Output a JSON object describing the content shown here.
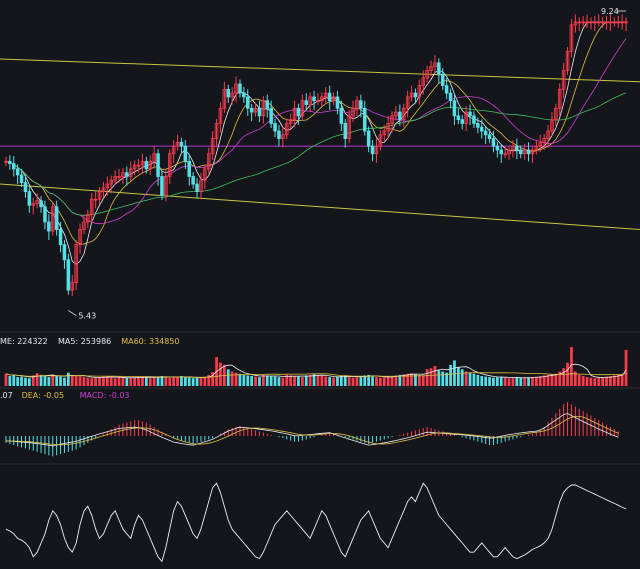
{
  "chart_data": [
    {
      "type": "candlestick",
      "panel": "price",
      "x": [
        1,
        2,
        3,
        4,
        5,
        6,
        7,
        8,
        9,
        10,
        11,
        12,
        13,
        14,
        15,
        16,
        17,
        18,
        19,
        20,
        21,
        22,
        23,
        24,
        25,
        26,
        27,
        28,
        29,
        30,
        31,
        32,
        33,
        34,
        35,
        36,
        37,
        38,
        39,
        40,
        41,
        42,
        43,
        44,
        45,
        46,
        47,
        48,
        49,
        50,
        51,
        52,
        53,
        54,
        55,
        56,
        57,
        58,
        59,
        60,
        61,
        62,
        63,
        64,
        65,
        66,
        67,
        68,
        69,
        70,
        71,
        72,
        73,
        74,
        75,
        76,
        77,
        78,
        79,
        80,
        81,
        82,
        83,
        84,
        85,
        86,
        87,
        88,
        89,
        90,
        91,
        92,
        93,
        94,
        95,
        96,
        97,
        98,
        99,
        100,
        101,
        102,
        103,
        104,
        105,
        106,
        107,
        108,
        109,
        110,
        111,
        112,
        113,
        114,
        115,
        116,
        117,
        118,
        119,
        120,
        121,
        122,
        123,
        124,
        125,
        126,
        127,
        128,
        129,
        130,
        131,
        132,
        133,
        134,
        135,
        136,
        137,
        138,
        139,
        140,
        141,
        142,
        143,
        144,
        145,
        146,
        147,
        148,
        149,
        150,
        151,
        152,
        153,
        154,
        155,
        156,
        157,
        158,
        159,
        160
      ],
      "close": [
        7.4,
        7.37,
        7.3,
        7.22,
        7.12,
        7.0,
        6.82,
        6.84,
        6.88,
        6.8,
        6.6,
        6.48,
        6.8,
        6.5,
        6.3,
        6.1,
        5.7,
        5.8,
        6.3,
        6.5,
        6.6,
        6.7,
        6.9,
        6.9,
        7.0,
        7.05,
        7.1,
        7.15,
        7.2,
        7.2,
        7.25,
        7.2,
        7.3,
        7.35,
        7.35,
        7.4,
        7.3,
        7.4,
        7.5,
        7.2,
        6.95,
        7.2,
        7.5,
        7.6,
        7.65,
        7.6,
        7.4,
        7.2,
        7.1,
        7.0,
        7.15,
        7.3,
        7.5,
        7.7,
        7.9,
        8.1,
        8.35,
        8.25,
        8.3,
        8.42,
        8.3,
        8.25,
        8.1,
        8.05,
        8.1,
        8.0,
        8.2,
        8.1,
        7.9,
        7.8,
        7.7,
        7.75,
        7.9,
        7.95,
        8.1,
        8.0,
        8.2,
        8.15,
        8.25,
        8.2,
        8.2,
        8.25,
        8.3,
        8.2,
        8.25,
        8.1,
        7.9,
        7.7,
        8.0,
        8.1,
        8.2,
        8.1,
        7.8,
        7.6,
        7.5,
        7.6,
        7.75,
        7.8,
        7.9,
        8.0,
        8.05,
        7.95,
        8.1,
        8.25,
        8.3,
        8.25,
        8.4,
        8.5,
        8.6,
        8.65,
        8.7,
        8.55,
        8.4,
        8.3,
        8.2,
        8.0,
        7.95,
        7.9,
        8.05,
        8.0,
        7.9,
        7.85,
        7.8,
        7.75,
        7.7,
        7.6,
        7.55,
        7.5,
        7.5,
        7.55,
        7.6,
        7.55,
        7.5,
        7.55,
        7.5,
        7.55,
        7.6,
        7.65,
        7.7,
        7.8,
        7.95,
        8.1,
        8.35,
        8.6,
        8.85,
        9.2,
        9.24,
        9.24,
        9.24,
        9.24,
        9.24,
        9.24,
        9.24,
        9.24,
        9.24,
        9.24,
        9.24,
        9.24,
        9.24,
        9.24
      ],
      "high": 9.24,
      "low": 5.43,
      "annotations": [
        "9.24",
        "5.43"
      ],
      "up_color": "#ff3b4e",
      "down_color": "#53e0e6",
      "trendlines": [
        {
          "color": "#c8c83c",
          "from": [
            1,
            8.75
          ],
          "to": [
            160,
            8.45
          ]
        },
        {
          "color": "#c8c83c",
          "from": [
            1,
            7.1
          ],
          "to": [
            160,
            6.5
          ]
        }
      ],
      "horizontal_line": {
        "color": "#b236d6",
        "value": 7.6
      },
      "moving_average_colors": [
        "#f0f0f0",
        "#e0c040",
        "#d040d0",
        "#40c060"
      ]
    },
    {
      "type": "bar",
      "panel": "volume",
      "legend": [
        {
          "text": "ME: 224322",
          "color": "#e8e8e8"
        },
        {
          "text": "MA5: 253986",
          "color": "#e8e8e8"
        },
        {
          "text": "MA60: 334850",
          "color": "#e0c040"
        }
      ],
      "values": [
        220,
        180,
        200,
        160,
        170,
        150,
        140,
        190,
        230,
        200,
        180,
        160,
        210,
        190,
        170,
        150,
        240,
        200,
        180,
        170,
        160,
        150,
        140,
        150,
        160,
        170,
        180,
        150,
        140,
        150,
        160,
        150,
        140,
        150,
        160,
        170,
        150,
        140,
        160,
        170,
        180,
        160,
        150,
        160,
        170,
        180,
        160,
        150,
        140,
        150,
        160,
        170,
        200,
        250,
        520,
        420,
        380,
        300,
        260,
        240,
        220,
        200,
        190,
        180,
        170,
        160,
        200,
        190,
        180,
        170,
        160,
        150,
        200,
        190,
        180,
        170,
        160,
        190,
        200,
        210,
        190,
        180,
        170,
        160,
        150,
        170,
        180,
        190,
        160,
        150,
        170,
        180,
        190,
        200,
        170,
        160,
        150,
        160,
        170,
        180,
        190,
        200,
        210,
        220,
        230,
        210,
        200,
        190,
        300,
        320,
        360,
        280,
        260,
        240,
        380,
        460,
        340,
        300,
        260,
        240,
        220,
        200,
        180,
        170,
        160,
        150,
        160,
        170,
        150,
        140,
        150,
        160,
        150,
        140,
        150,
        160,
        170,
        180,
        190,
        200,
        210,
        220,
        260,
        320,
        420,
        700,
        260,
        200,
        180,
        160,
        150,
        140,
        150,
        160,
        170,
        180,
        190,
        200,
        210,
        650
      ],
      "ylim": [
        0,
        720
      ]
    },
    {
      "type": "bar",
      "panel": "macd",
      "legend": [
        {
          "text": ".07",
          "color": "#e8e8e8"
        },
        {
          "text": "DEA: -0.05",
          "color": "#e0c040"
        },
        {
          "text": "MACD: -0.03",
          "color": "#d040d0"
        }
      ],
      "values": [
        -0.06,
        -0.07,
        -0.08,
        -0.09,
        -0.1,
        -0.11,
        -0.12,
        -0.13,
        -0.14,
        -0.15,
        -0.16,
        -0.17,
        -0.18,
        -0.17,
        -0.16,
        -0.15,
        -0.14,
        -0.13,
        -0.12,
        -0.1,
        -0.08,
        -0.06,
        -0.04,
        -0.02,
        0.0,
        0.02,
        0.04,
        0.06,
        0.08,
        0.1,
        0.11,
        0.12,
        0.13,
        0.14,
        0.14,
        0.13,
        0.12,
        0.1,
        0.08,
        0.06,
        0.04,
        0.02,
        0.0,
        -0.02,
        -0.03,
        -0.04,
        -0.05,
        -0.06,
        -0.07,
        -0.06,
        -0.05,
        -0.04,
        -0.03,
        -0.02,
        0.0,
        0.02,
        0.04,
        0.06,
        0.07,
        0.08,
        0.09,
        0.08,
        0.07,
        0.06,
        0.05,
        0.04,
        0.03,
        0.02,
        0.01,
        0.0,
        -0.01,
        -0.02,
        -0.03,
        -0.04,
        -0.05,
        -0.05,
        -0.04,
        -0.03,
        -0.02,
        -0.01,
        0.0,
        0.01,
        0.02,
        0.03,
        0.02,
        0.01,
        0.0,
        -0.01,
        -0.02,
        -0.03,
        -0.04,
        -0.05,
        -0.06,
        -0.07,
        -0.06,
        -0.05,
        -0.04,
        -0.03,
        -0.02,
        -0.01,
        0.0,
        0.01,
        0.02,
        0.03,
        0.04,
        0.05,
        0.06,
        0.07,
        0.08,
        0.07,
        0.06,
        0.05,
        0.04,
        0.03,
        0.02,
        0.01,
        0.0,
        -0.01,
        -0.02,
        -0.03,
        -0.04,
        -0.05,
        -0.06,
        -0.07,
        -0.08,
        -0.08,
        -0.07,
        -0.06,
        -0.05,
        -0.04,
        -0.03,
        -0.02,
        -0.01,
        0.0,
        0.01,
        0.02,
        0.03,
        0.05,
        0.08,
        0.12,
        0.16,
        0.2,
        0.24,
        0.28,
        0.3,
        0.28,
        0.26,
        0.24,
        0.22,
        0.2,
        0.18,
        0.16,
        0.14,
        0.12,
        0.1,
        0.08,
        0.06,
        0.04
      ],
      "ylim": [
        -0.3,
        0.3
      ]
    },
    {
      "type": "line",
      "panel": "oscillator",
      "values": [
        40,
        38,
        35,
        30,
        28,
        25,
        20,
        10,
        15,
        25,
        35,
        50,
        60,
        55,
        45,
        30,
        20,
        15,
        25,
        45,
        60,
        65,
        55,
        40,
        30,
        35,
        45,
        55,
        60,
        50,
        40,
        35,
        30,
        45,
        55,
        50,
        40,
        30,
        20,
        10,
        5,
        20,
        40,
        60,
        70,
        65,
        55,
        45,
        35,
        30,
        40,
        55,
        70,
        85,
        90,
        80,
        65,
        50,
        40,
        35,
        30,
        25,
        20,
        15,
        10,
        8,
        15,
        25,
        35,
        45,
        50,
        55,
        60,
        55,
        50,
        45,
        40,
        35,
        30,
        40,
        50,
        60,
        55,
        45,
        35,
        25,
        15,
        10,
        20,
        30,
        40,
        50,
        55,
        60,
        50,
        40,
        30,
        25,
        20,
        30,
        40,
        50,
        60,
        70,
        75,
        70,
        80,
        90,
        85,
        75,
        65,
        55,
        50,
        45,
        40,
        35,
        30,
        25,
        20,
        15,
        15,
        20,
        25,
        20,
        15,
        10,
        10,
        15,
        20,
        15,
        10,
        8,
        10,
        12,
        15,
        18,
        20,
        22,
        25,
        30,
        40,
        55,
        70,
        80,
        85,
        88,
        88,
        86,
        84,
        82,
        80,
        78,
        76,
        74,
        72,
        70,
        68,
        66,
        64,
        62
      ],
      "ylim": [
        0,
        100
      ]
    }
  ]
}
